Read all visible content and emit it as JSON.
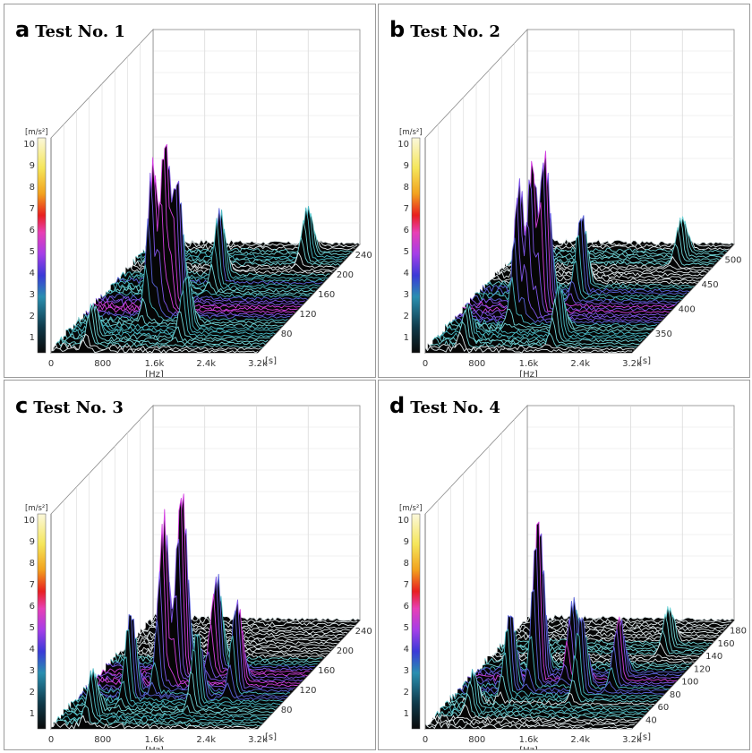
{
  "chart_data": [
    {
      "type": "waterfall-3d",
      "letter": "a",
      "title": "Test No. 1",
      "xlabel": "[Hz]",
      "x_ticks": [
        "0",
        "800",
        "1.6k",
        "2.4k",
        "3.2k"
      ],
      "xlim": [
        0,
        3200
      ],
      "zlabel": "[m/s²]",
      "z_ticks": [
        "1",
        "2",
        "3",
        "4",
        "5",
        "6",
        "7",
        "8",
        "9",
        "10"
      ],
      "zlim": [
        0,
        10
      ],
      "tlabel": "[s]",
      "t_ticks": [
        "80",
        "120",
        "160",
        "200",
        "240"
      ],
      "tlim": [
        40,
        260
      ],
      "peaks": [
        {
          "freq": 1000,
          "time": 120,
          "amp": 7.2
        },
        {
          "freq": 1120,
          "time": 130,
          "amp": 8.0
        },
        {
          "freq": 1230,
          "time": 140,
          "amp": 6.0
        },
        {
          "freq": 1600,
          "time": 180,
          "amp": 3.5
        },
        {
          "freq": 2600,
          "time": 230,
          "amp": 2.5
        },
        {
          "freq": 1800,
          "time": 80,
          "amp": 2.8
        },
        {
          "freq": 500,
          "time": 60,
          "amp": 1.8
        }
      ]
    },
    {
      "type": "waterfall-3d",
      "letter": "b",
      "title": "Test No. 2",
      "xlabel": "[Hz]",
      "x_ticks": [
        "0",
        "800",
        "1.6k",
        "2.4k",
        "3.2k"
      ],
      "xlim": [
        0,
        3200
      ],
      "zlabel": "[m/s²]",
      "z_ticks": [
        "1",
        "2",
        "3",
        "4",
        "5",
        "6",
        "7",
        "8",
        "9",
        "10"
      ],
      "zlim": [
        0,
        10
      ],
      "tlabel": "[s]",
      "t_ticks": [
        "350",
        "400",
        "450",
        "500"
      ],
      "tlim": [
        310,
        530
      ],
      "peaks": [
        {
          "freq": 950,
          "time": 380,
          "amp": 6.5
        },
        {
          "freq": 1080,
          "time": 390,
          "amp": 7.2
        },
        {
          "freq": 1200,
          "time": 400,
          "amp": 7.5
        },
        {
          "freq": 1550,
          "time": 430,
          "amp": 3.8
        },
        {
          "freq": 2600,
          "time": 500,
          "amp": 2.0
        },
        {
          "freq": 1850,
          "time": 340,
          "amp": 2.5
        },
        {
          "freq": 500,
          "time": 330,
          "amp": 1.6
        }
      ]
    },
    {
      "type": "waterfall-3d",
      "letter": "c",
      "title": "Test No. 3",
      "xlabel": "[Hz]",
      "x_ticks": [
        "0",
        "800",
        "1.6k",
        "2.4k",
        "3.2k"
      ],
      "xlim": [
        0,
        3200
      ],
      "zlabel": "[m/s²]",
      "z_ticks": [
        "1",
        "2",
        "3",
        "4",
        "5",
        "6",
        "7",
        "8",
        "9",
        "10"
      ],
      "zlim": [
        0,
        10
      ],
      "tlabel": "[s]",
      "t_ticks": [
        "80",
        "120",
        "160",
        "200",
        "240"
      ],
      "tlim": [
        40,
        260
      ],
      "peaks": [
        {
          "freq": 1100,
          "time": 130,
          "amp": 8.0
        },
        {
          "freq": 1230,
          "time": 150,
          "amp": 9.0
        },
        {
          "freq": 800,
          "time": 100,
          "amp": 4.2
        },
        {
          "freq": 1700,
          "time": 160,
          "amp": 4.5
        },
        {
          "freq": 2300,
          "time": 120,
          "amp": 4.3
        },
        {
          "freq": 1900,
          "time": 90,
          "amp": 3.5
        },
        {
          "freq": 500,
          "time": 60,
          "amp": 2.2
        }
      ]
    },
    {
      "type": "waterfall-3d",
      "letter": "d",
      "title": "Test No. 4",
      "xlabel": "[Hz]",
      "x_ticks": [
        "0",
        "800",
        "1.6k",
        "2.4k",
        "3.2k"
      ],
      "xlim": [
        0,
        3200
      ],
      "zlabel": "[m/s²]",
      "z_ticks": [
        "1",
        "2",
        "3",
        "4",
        "5",
        "6",
        "7",
        "8",
        "9",
        "10"
      ],
      "zlim": [
        0,
        10
      ],
      "tlabel": "[s]",
      "t_ticks": [
        "40",
        "60",
        "80",
        "100",
        "120",
        "140",
        "160",
        "180"
      ],
      "tlim": [
        25,
        195
      ],
      "peaks": [
        {
          "freq": 1050,
          "time": 100,
          "amp": 8.0
        },
        {
          "freq": 800,
          "time": 80,
          "amp": 4.0
        },
        {
          "freq": 1500,
          "time": 110,
          "amp": 3.6
        },
        {
          "freq": 1900,
          "time": 80,
          "amp": 3.8
        },
        {
          "freq": 2300,
          "time": 100,
          "amp": 3.0
        },
        {
          "freq": 2600,
          "time": 150,
          "amp": 2.0
        },
        {
          "freq": 500,
          "time": 50,
          "amp": 1.8
        }
      ]
    }
  ]
}
